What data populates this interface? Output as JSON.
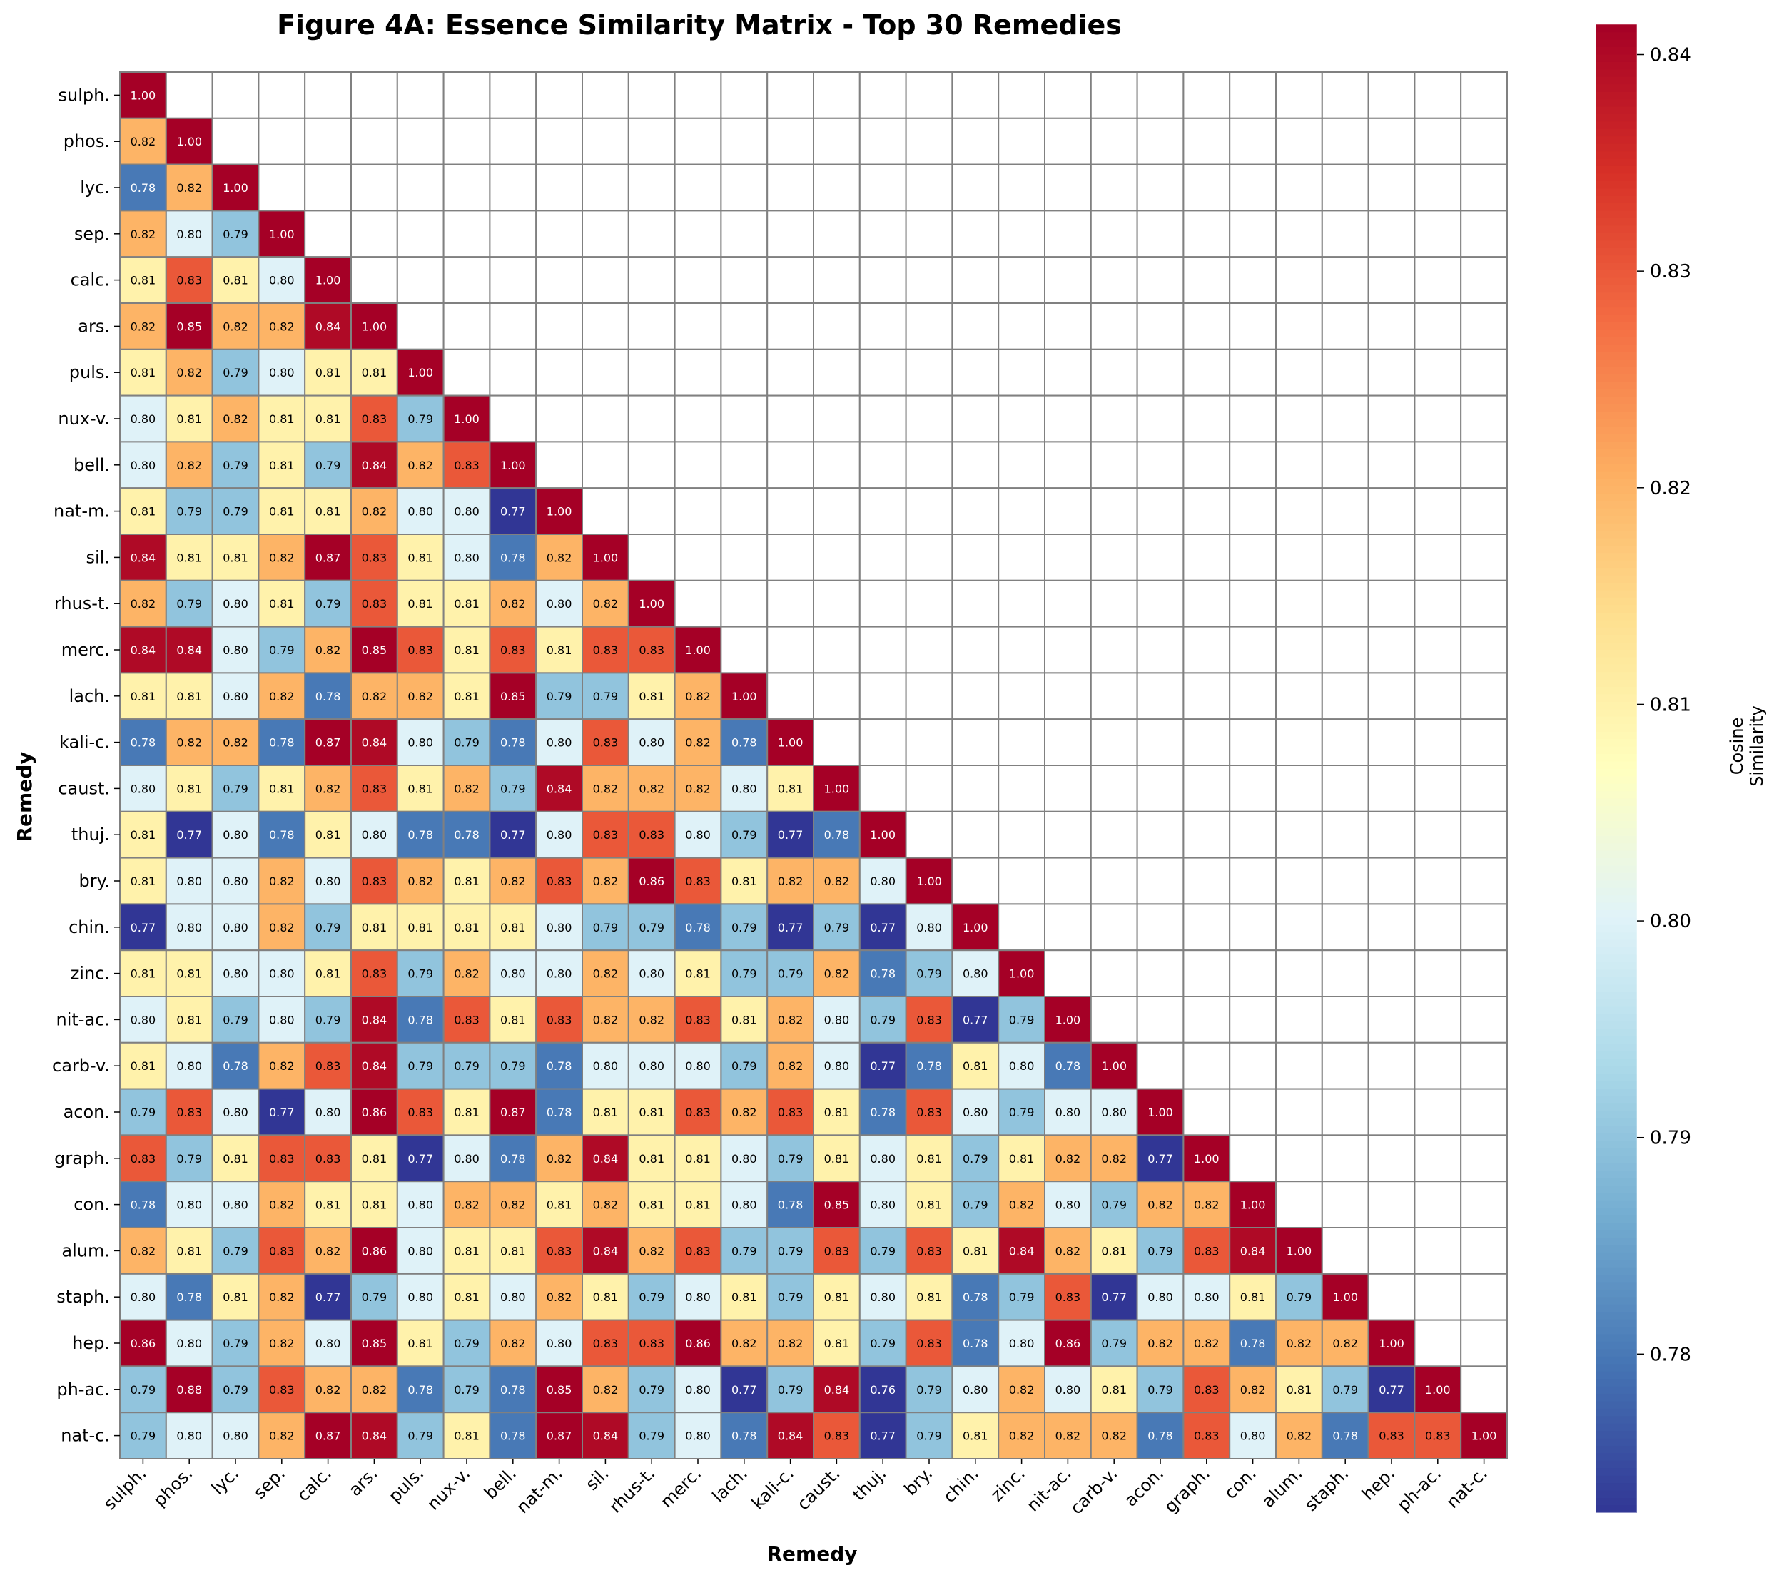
{
  "chart_data": {
    "type": "heatmap",
    "title": "Figure 4A: Essence Similarity Matrix - Top 30 Remedies",
    "xlabel": "Remedy",
    "ylabel": "Remedy",
    "colorbar_label": [
      "Cosine",
      "Similarity"
    ],
    "colormap": "RdYlBu_r",
    "mask": "upper triangle (only lower triangle incl. diagonal shown)",
    "value_format": "2 decimals",
    "vmin": 0.7727,
    "vmax": 0.8414,
    "colorbar_ticks": [
      "0.78",
      "0.79",
      "0.80",
      "0.81",
      "0.82",
      "0.83",
      "0.84"
    ],
    "categories": [
      "sulph.",
      "phos.",
      "lyc.",
      "sep.",
      "calc.",
      "ars.",
      "puls.",
      "nux-v.",
      "bell.",
      "nat-m.",
      "sil.",
      "rhus-t.",
      "merc.",
      "lach.",
      "kali-c.",
      "caust.",
      "thuj.",
      "bry.",
      "chin.",
      "zinc.",
      "nit-ac.",
      "carb-v.",
      "acon.",
      "graph.",
      "con.",
      "alum.",
      "staph.",
      "hep.",
      "ph-ac.",
      "nat-c."
    ],
    "rows": [
      [
        1.0
      ],
      [
        0.82,
        1.0
      ],
      [
        0.78,
        0.82,
        1.0
      ],
      [
        0.82,
        0.8,
        0.79,
        1.0
      ],
      [
        0.81,
        0.83,
        0.81,
        0.8,
        1.0
      ],
      [
        0.82,
        0.85,
        0.82,
        0.82,
        0.84,
        1.0
      ],
      [
        0.81,
        0.82,
        0.79,
        0.8,
        0.81,
        0.81,
        1.0
      ],
      [
        0.8,
        0.81,
        0.82,
        0.81,
        0.81,
        0.83,
        0.79,
        1.0
      ],
      [
        0.8,
        0.82,
        0.79,
        0.81,
        0.79,
        0.84,
        0.82,
        0.83,
        1.0
      ],
      [
        0.81,
        0.79,
        0.79,
        0.81,
        0.81,
        0.82,
        0.8,
        0.8,
        0.77,
        1.0
      ],
      [
        0.84,
        0.81,
        0.81,
        0.82,
        0.87,
        0.83,
        0.81,
        0.8,
        0.78,
        0.82,
        1.0
      ],
      [
        0.82,
        0.79,
        0.8,
        0.81,
        0.79,
        0.83,
        0.81,
        0.81,
        0.82,
        0.8,
        0.82,
        1.0
      ],
      [
        0.84,
        0.84,
        0.8,
        0.79,
        0.82,
        0.85,
        0.83,
        0.81,
        0.83,
        0.81,
        0.83,
        0.83,
        1.0
      ],
      [
        0.81,
        0.81,
        0.8,
        0.82,
        0.78,
        0.82,
        0.82,
        0.81,
        0.85,
        0.79,
        0.79,
        0.81,
        0.82,
        1.0
      ],
      [
        0.78,
        0.82,
        0.82,
        0.78,
        0.87,
        0.84,
        0.8,
        0.79,
        0.78,
        0.8,
        0.83,
        0.8,
        0.82,
        0.78,
        1.0
      ],
      [
        0.8,
        0.81,
        0.79,
        0.81,
        0.82,
        0.83,
        0.81,
        0.82,
        0.79,
        0.84,
        0.82,
        0.82,
        0.82,
        0.8,
        0.81,
        1.0
      ],
      [
        0.81,
        0.77,
        0.8,
        0.78,
        0.81,
        0.8,
        0.78,
        0.78,
        0.77,
        0.8,
        0.83,
        0.83,
        0.8,
        0.79,
        0.77,
        0.78,
        1.0
      ],
      [
        0.81,
        0.8,
        0.8,
        0.82,
        0.8,
        0.83,
        0.82,
        0.81,
        0.82,
        0.83,
        0.82,
        0.86,
        0.83,
        0.81,
        0.82,
        0.82,
        0.8,
        1.0
      ],
      [
        0.77,
        0.8,
        0.8,
        0.82,
        0.79,
        0.81,
        0.81,
        0.81,
        0.81,
        0.8,
        0.79,
        0.79,
        0.78,
        0.79,
        0.77,
        0.79,
        0.77,
        0.8,
        1.0
      ],
      [
        0.81,
        0.81,
        0.8,
        0.8,
        0.81,
        0.83,
        0.79,
        0.82,
        0.8,
        0.8,
        0.82,
        0.8,
        0.81,
        0.79,
        0.79,
        0.82,
        0.78,
        0.79,
        0.8,
        1.0
      ],
      [
        0.8,
        0.81,
        0.79,
        0.8,
        0.79,
        0.84,
        0.78,
        0.83,
        0.81,
        0.83,
        0.82,
        0.82,
        0.83,
        0.81,
        0.82,
        0.8,
        0.79,
        0.83,
        0.77,
        0.79,
        1.0
      ],
      [
        0.81,
        0.8,
        0.78,
        0.82,
        0.83,
        0.84,
        0.79,
        0.79,
        0.79,
        0.78,
        0.8,
        0.8,
        0.8,
        0.79,
        0.82,
        0.8,
        0.77,
        0.78,
        0.81,
        0.8,
        0.78,
        1.0
      ],
      [
        0.79,
        0.83,
        0.8,
        0.77,
        0.8,
        0.86,
        0.83,
        0.81,
        0.87,
        0.78,
        0.81,
        0.81,
        0.83,
        0.82,
        0.83,
        0.81,
        0.78,
        0.83,
        0.8,
        0.79,
        0.8,
        0.8,
        1.0
      ],
      [
        0.83,
        0.79,
        0.81,
        0.83,
        0.83,
        0.81,
        0.77,
        0.8,
        0.78,
        0.82,
        0.84,
        0.81,
        0.81,
        0.8,
        0.79,
        0.81,
        0.8,
        0.81,
        0.79,
        0.81,
        0.82,
        0.82,
        0.77,
        1.0
      ],
      [
        0.78,
        0.8,
        0.8,
        0.82,
        0.81,
        0.81,
        0.8,
        0.82,
        0.82,
        0.81,
        0.82,
        0.81,
        0.81,
        0.8,
        0.78,
        0.85,
        0.8,
        0.81,
        0.79,
        0.82,
        0.8,
        0.79,
        0.82,
        0.82,
        1.0
      ],
      [
        0.82,
        0.81,
        0.79,
        0.83,
        0.82,
        0.86,
        0.8,
        0.81,
        0.81,
        0.83,
        0.84,
        0.82,
        0.83,
        0.79,
        0.79,
        0.83,
        0.79,
        0.83,
        0.81,
        0.84,
        0.82,
        0.81,
        0.79,
        0.83,
        0.84,
        1.0
      ],
      [
        0.8,
        0.78,
        0.81,
        0.82,
        0.77,
        0.79,
        0.8,
        0.81,
        0.8,
        0.82,
        0.81,
        0.79,
        0.8,
        0.81,
        0.79,
        0.81,
        0.8,
        0.81,
        0.78,
        0.79,
        0.83,
        0.77,
        0.8,
        0.8,
        0.81,
        0.79,
        1.0
      ],
      [
        0.86,
        0.8,
        0.79,
        0.82,
        0.8,
        0.85,
        0.81,
        0.79,
        0.82,
        0.8,
        0.83,
        0.83,
        0.86,
        0.82,
        0.82,
        0.81,
        0.79,
        0.83,
        0.78,
        0.8,
        0.86,
        0.79,
        0.82,
        0.82,
        0.78,
        0.82,
        0.82,
        1.0
      ],
      [
        0.79,
        0.88,
        0.79,
        0.83,
        0.82,
        0.82,
        0.78,
        0.79,
        0.78,
        0.85,
        0.82,
        0.79,
        0.8,
        0.77,
        0.79,
        0.84,
        0.76,
        0.79,
        0.8,
        0.82,
        0.8,
        0.81,
        0.79,
        0.83,
        0.82,
        0.81,
        0.79,
        0.77,
        1.0
      ],
      [
        0.79,
        0.8,
        0.8,
        0.82,
        0.87,
        0.84,
        0.79,
        0.81,
        0.78,
        0.87,
        0.84,
        0.79,
        0.8,
        0.78,
        0.84,
        0.83,
        0.77,
        0.79,
        0.81,
        0.82,
        0.82,
        0.82,
        0.78,
        0.83,
        0.8,
        0.82,
        0.78,
        0.83,
        0.83,
        1.0
      ]
    ]
  }
}
